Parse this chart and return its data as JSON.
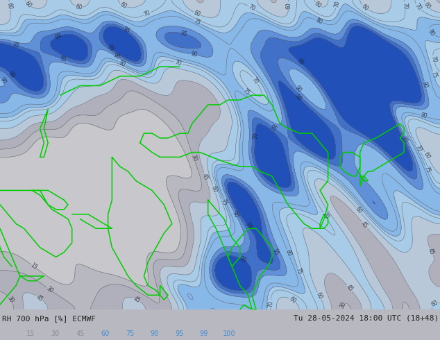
{
  "title_left": "RH 700 hPa [%] ECMWF",
  "title_right": "Tu 28-05-2024 18:00 UTC (18+48)",
  "colorbar_labels": [
    "15",
    "30",
    "45",
    "60",
    "75",
    "90",
    "95",
    "99",
    "100"
  ],
  "colorbar_values": [
    15,
    30,
    45,
    60,
    75,
    90,
    95,
    99,
    100
  ],
  "fill_colors": [
    "#c8c8cc",
    "#b8b8c0",
    "#b0b0bc",
    "#b8c8d8",
    "#a8cce8",
    "#88b8e8",
    "#6090d8",
    "#4070c8",
    "#2050b8"
  ],
  "contour_color": "#606068",
  "contour_label_color": "#202028",
  "coastline_color": "#00cc00",
  "background_color": "#b8b8c0",
  "text_color": "#202020",
  "label_colors_bar": [
    "#909098",
    "#909098",
    "#909098",
    "#5090d0",
    "#5090d0",
    "#5090d0",
    "#5090d0",
    "#5090d0",
    "#5090d0"
  ],
  "fig_width": 6.34,
  "fig_height": 4.9,
  "dpi": 100
}
